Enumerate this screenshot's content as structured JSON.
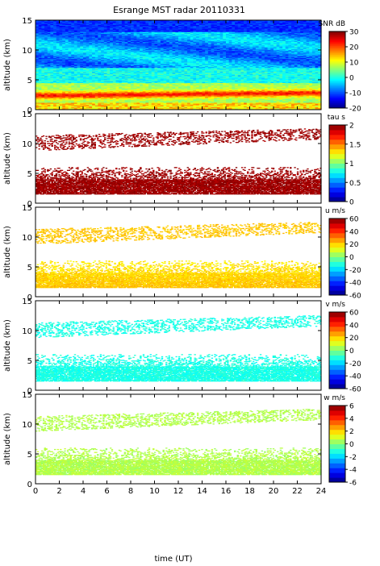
{
  "chart_data": {
    "title": "Esrange MST radar 20110331",
    "type": "heatmap",
    "xlabel": "time (UT)",
    "x_ticks": [
      "0",
      "2",
      "4",
      "6",
      "8",
      "10",
      "12",
      "14",
      "16",
      "18",
      "20",
      "22",
      "24"
    ],
    "xlim": [
      0,
      24
    ],
    "panels": [
      {
        "ylabel": "altitude (km)",
        "y_ticks": [
          "0",
          "5",
          "10",
          "15"
        ],
        "ylim": [
          0,
          15
        ],
        "colorbar_label": "SNR dB",
        "colorbar_ticks": [
          "30",
          "20",
          "10",
          "0",
          "-10",
          "-20"
        ],
        "clim": [
          -20,
          30
        ],
        "variable": "snr"
      },
      {
        "ylabel": "altitude (km)",
        "y_ticks": [
          "0",
          "5",
          "10",
          "15"
        ],
        "ylim": [
          0,
          15
        ],
        "colorbar_label": "tau s",
        "colorbar_ticks": [
          "2",
          "1.5",
          "1",
          "0.5",
          "0"
        ],
        "clim": [
          0,
          2
        ],
        "variable": "tau"
      },
      {
        "ylabel": "altitude (km)",
        "y_ticks": [
          "0",
          "5",
          "10",
          "15"
        ],
        "ylim": [
          0,
          15
        ],
        "colorbar_label": "u m/s",
        "colorbar_ticks": [
          "60",
          "40",
          "20",
          "0",
          "-20",
          "-40",
          "-60"
        ],
        "clim": [
          -60,
          60
        ],
        "variable": "u"
      },
      {
        "ylabel": "altitude (km)",
        "y_ticks": [
          "0",
          "5",
          "10",
          "15"
        ],
        "ylim": [
          0,
          15
        ],
        "colorbar_label": "v m/s",
        "colorbar_ticks": [
          "60",
          "40",
          "20",
          "0",
          "-20",
          "-40",
          "-60"
        ],
        "clim": [
          -60,
          60
        ],
        "variable": "v"
      },
      {
        "ylabel": "altitude (km)",
        "y_ticks": [
          "0",
          "5",
          "10",
          "15"
        ],
        "ylim": [
          0,
          15
        ],
        "colorbar_label": "w m/s",
        "colorbar_ticks": [
          "6",
          "4",
          "2",
          "0",
          "-2",
          "-4",
          "-6"
        ],
        "clim": [
          -6,
          6
        ],
        "variable": "w"
      }
    ]
  }
}
